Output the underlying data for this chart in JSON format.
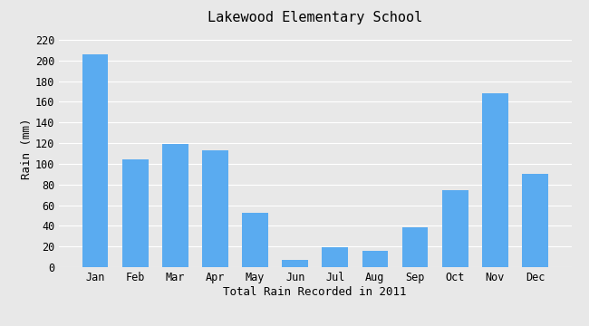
{
  "title": "Lakewood Elementary School",
  "xlabel": "Total Rain Recorded in 2011",
  "ylabel": "Rain (mm)",
  "months": [
    "Jan",
    "Feb",
    "Mar",
    "Apr",
    "May",
    "Jun",
    "Jul",
    "Aug",
    "Sep",
    "Oct",
    "Nov",
    "Dec"
  ],
  "values": [
    206,
    104,
    119,
    113,
    53,
    7,
    19,
    16,
    39,
    75,
    168,
    90
  ],
  "bar_color": "#5aabf0",
  "background_color": "#e8e8e8",
  "plot_bg_color": "#e8e8e8",
  "ylim": [
    0,
    230
  ],
  "yticks": [
    0,
    20,
    40,
    60,
    80,
    100,
    120,
    140,
    160,
    180,
    200,
    220
  ],
  "title_fontsize": 11,
  "label_fontsize": 9,
  "tick_fontsize": 8.5
}
